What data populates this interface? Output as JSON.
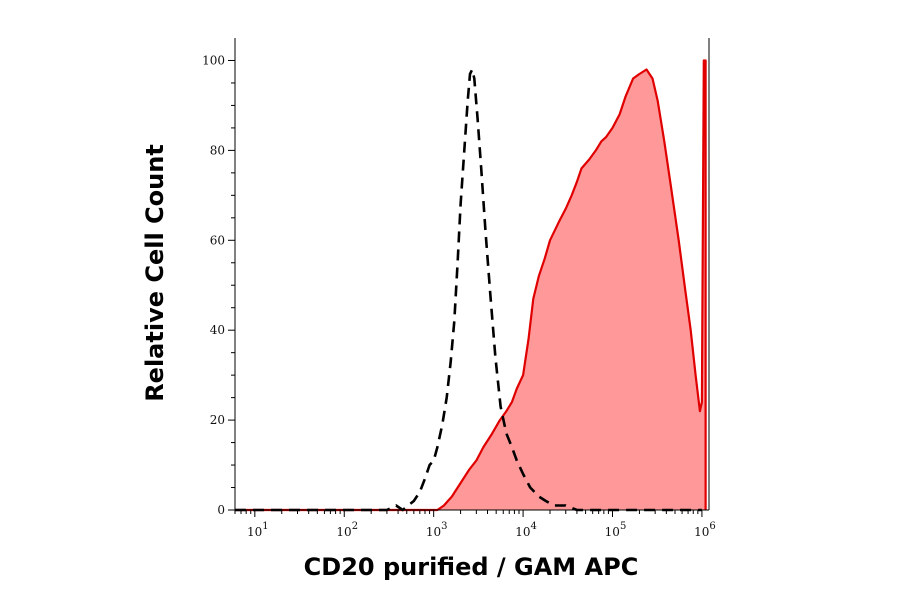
{
  "chart_data": {
    "type": "area",
    "xlabel": "CD20 purified / GAM APC",
    "ylabel": "Relative Cell Count",
    "x_scale": "log",
    "xlim": [
      6,
      1200000
    ],
    "ylim": [
      0,
      105
    ],
    "x_ticks": [
      {
        "value": 10,
        "base": "10",
        "exp": "1"
      },
      {
        "value": 100,
        "base": "10",
        "exp": "2"
      },
      {
        "value": 1000,
        "base": "10",
        "exp": "3"
      },
      {
        "value": 10000,
        "base": "10",
        "exp": "4"
      },
      {
        "value": 100000,
        "base": "10",
        "exp": "5"
      },
      {
        "value": 1000000,
        "base": "10",
        "exp": "6"
      }
    ],
    "y_ticks": [
      0,
      20,
      40,
      60,
      80,
      100
    ],
    "grid": false,
    "legend": "none",
    "series": [
      {
        "style": "filled-solid",
        "color": "#e00000",
        "fill": "#ff9999",
        "points": [
          [
            6,
            0
          ],
          [
            50,
            0
          ],
          [
            200,
            0
          ],
          [
            600,
            0
          ],
          [
            1100,
            0
          ],
          [
            1300,
            1
          ],
          [
            1600,
            3
          ],
          [
            2000,
            6
          ],
          [
            2500,
            9
          ],
          [
            3000,
            11
          ],
          [
            3600,
            14
          ],
          [
            4500,
            17
          ],
          [
            5500,
            20
          ],
          [
            6500,
            22
          ],
          [
            7500,
            24
          ],
          [
            8500,
            27
          ],
          [
            10000,
            30
          ],
          [
            11500,
            38
          ],
          [
            13000,
            47
          ],
          [
            15000,
            52
          ],
          [
            17500,
            56
          ],
          [
            20000,
            60
          ],
          [
            25000,
            64
          ],
          [
            30000,
            67
          ],
          [
            35000,
            70
          ],
          [
            40000,
            73
          ],
          [
            45000,
            76
          ],
          [
            55000,
            78
          ],
          [
            65000,
            80
          ],
          [
            75000,
            82
          ],
          [
            85000,
            83
          ],
          [
            100000,
            85
          ],
          [
            120000,
            88
          ],
          [
            140000,
            92
          ],
          [
            170000,
            96
          ],
          [
            200000,
            97
          ],
          [
            240000,
            98
          ],
          [
            280000,
            96
          ],
          [
            320000,
            91
          ],
          [
            380000,
            82
          ],
          [
            450000,
            72
          ],
          [
            550000,
            60
          ],
          [
            650000,
            49
          ],
          [
            750000,
            40
          ],
          [
            850000,
            30
          ],
          [
            950000,
            22
          ],
          [
            1000000,
            24
          ],
          [
            1050000,
            100
          ],
          [
            1100000,
            100
          ],
          [
            1100000,
            0
          ]
        ]
      },
      {
        "style": "dashed",
        "color": "#000000",
        "points": [
          [
            6,
            0
          ],
          [
            200,
            0
          ],
          [
            300,
            0
          ],
          [
            380,
            1
          ],
          [
            450,
            0
          ],
          [
            600,
            2
          ],
          [
            700,
            4
          ],
          [
            800,
            7
          ],
          [
            900,
            10
          ],
          [
            1000,
            11
          ],
          [
            1100,
            14
          ],
          [
            1250,
            19
          ],
          [
            1400,
            25
          ],
          [
            1550,
            33
          ],
          [
            1700,
            42
          ],
          [
            1850,
            55
          ],
          [
            2000,
            68
          ],
          [
            2200,
            80
          ],
          [
            2400,
            91
          ],
          [
            2550,
            97
          ],
          [
            2700,
            98
          ],
          [
            2850,
            96
          ],
          [
            3100,
            87
          ],
          [
            3400,
            76
          ],
          [
            3800,
            62
          ],
          [
            4300,
            48
          ],
          [
            4900,
            34
          ],
          [
            5600,
            23
          ],
          [
            6500,
            17
          ],
          [
            7500,
            14
          ],
          [
            8500,
            11
          ],
          [
            10000,
            8
          ],
          [
            12000,
            5
          ],
          [
            15000,
            3
          ],
          [
            18000,
            2
          ],
          [
            22000,
            1
          ],
          [
            30000,
            1
          ],
          [
            40000,
            0
          ],
          [
            60000,
            0
          ],
          [
            100000,
            0
          ],
          [
            300000,
            0
          ],
          [
            1000000,
            0
          ]
        ]
      }
    ]
  }
}
